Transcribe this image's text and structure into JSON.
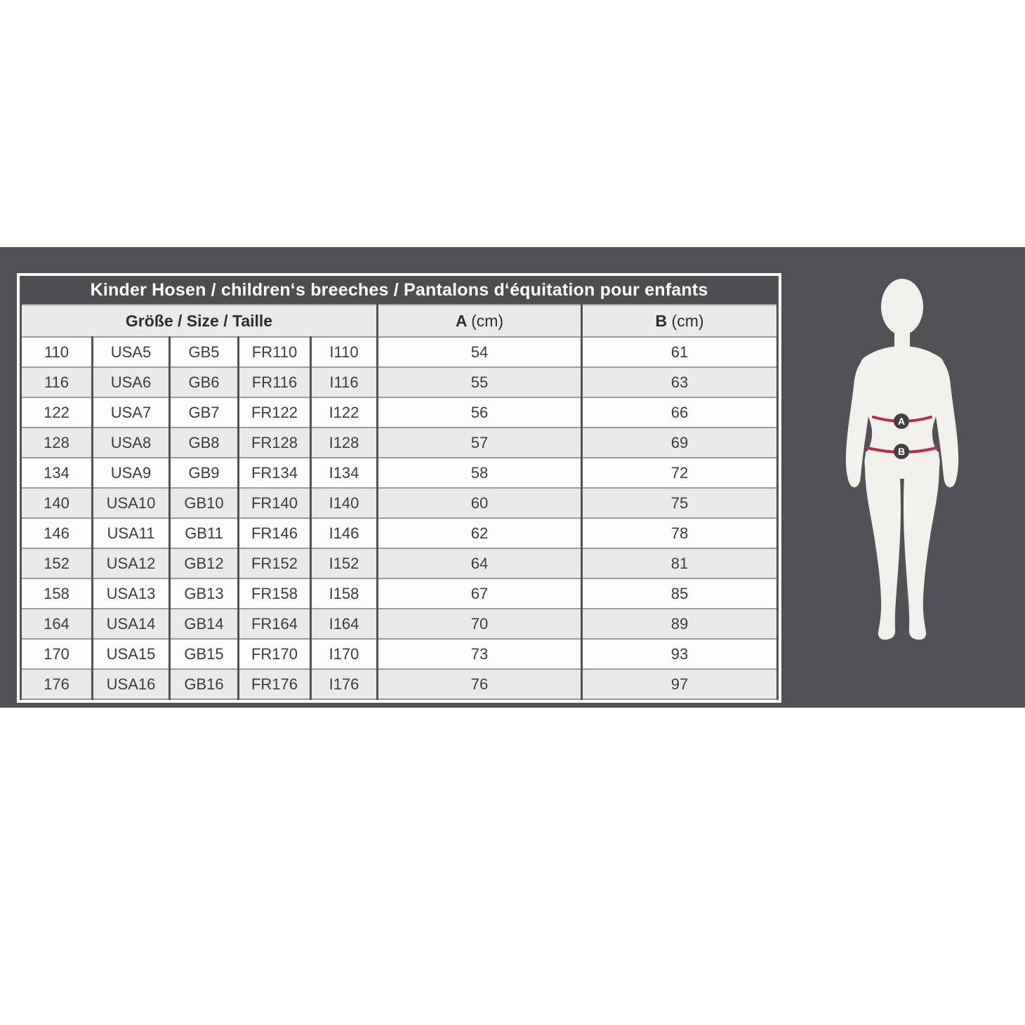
{
  "band": {
    "background": "#525155"
  },
  "table": {
    "title": "Kinder Hosen / children‘s breeches /  Pantalons d‘équitation pour enfants",
    "size_header": "Größe / Size / Taille",
    "columns": {
      "a_label": "A",
      "a_unit": "(cm)",
      "b_label": "B",
      "b_unit": "(cm)"
    },
    "rows": [
      [
        "110",
        "USA5",
        "GB5",
        "FR110",
        "I110",
        "54",
        "61"
      ],
      [
        "116",
        "USA6",
        "GB6",
        "FR116",
        "I116",
        "55",
        "63"
      ],
      [
        "122",
        "USA7",
        "GB7",
        "FR122",
        "I122",
        "56",
        "66"
      ],
      [
        "128",
        "USA8",
        "GB8",
        "FR128",
        "I128",
        "57",
        "69"
      ],
      [
        "134",
        "USA9",
        "GB9",
        "FR134",
        "I134",
        "58",
        "72"
      ],
      [
        "140",
        "USA10",
        "GB10",
        "FR140",
        "I140",
        "60",
        "75"
      ],
      [
        "146",
        "USA11",
        "GB11",
        "FR146",
        "I146",
        "62",
        "78"
      ],
      [
        "152",
        "USA12",
        "GB12",
        "FR152",
        "I152",
        "64",
        "81"
      ],
      [
        "158",
        "USA13",
        "GB13",
        "FR158",
        "I158",
        "67",
        "85"
      ],
      [
        "164",
        "USA14",
        "GB14",
        "FR164",
        "I164",
        "70",
        "89"
      ],
      [
        "170",
        "USA15",
        "GB15",
        "FR170",
        "I170",
        "73",
        "93"
      ],
      [
        "176",
        "USA16",
        "GB16",
        "FR176",
        "I176",
        "76",
        "97"
      ]
    ]
  },
  "figure": {
    "waist_label": "A",
    "hip_label": "B",
    "body_color": "#f1f0ed",
    "line_color": "#bb2d42",
    "badge_color": "#403f44"
  }
}
